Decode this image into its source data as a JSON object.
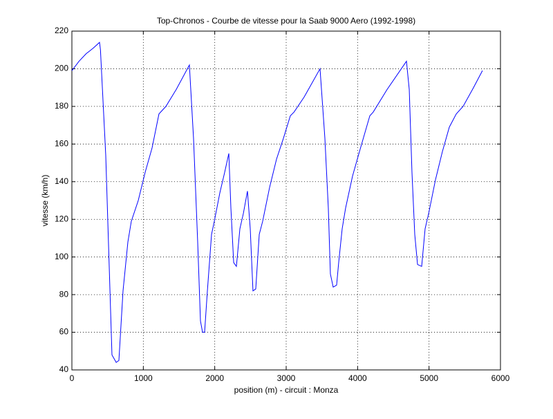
{
  "chart_data": {
    "type": "line",
    "title": "Top-Chronos - Courbe de vitesse pour la Saab 9000 Aero (1992-1998)",
    "xlabel": "position (m) - circuit : Monza",
    "ylabel": "vitesse (km/h)",
    "color": "#0000ff",
    "x": [
      0,
      100,
      200,
      300,
      387,
      400,
      474,
      561,
      620,
      658,
      716,
      784,
      832,
      929,
      1026,
      1123,
      1219,
      1316,
      1461,
      1645,
      1703,
      1761,
      1800,
      1829,
      1858,
      1897,
      1955,
      1994,
      2071,
      2139,
      2197,
      2226,
      2265,
      2303,
      2352,
      2400,
      2458,
      2497,
      2535,
      2574,
      2623,
      2671,
      2768,
      2865,
      2961,
      3058,
      3110,
      3252,
      3474,
      3542,
      3590,
      3619,
      3658,
      3706,
      3735,
      3784,
      3832,
      3929,
      4026,
      4171,
      4219,
      4413,
      4684,
      4723,
      4761,
      4800,
      4839,
      4897,
      4945,
      4994,
      5090,
      5187,
      5284,
      5381,
      5477,
      5623,
      5748
    ],
    "values": [
      199,
      204,
      208,
      211,
      214,
      210,
      154,
      48,
      44,
      45,
      82,
      108,
      119,
      130,
      145,
      158,
      176,
      180,
      189,
      202,
      163,
      108,
      66,
      60,
      60,
      82,
      112,
      119,
      134,
      145,
      155,
      126,
      97,
      95,
      115,
      123,
      135,
      115,
      82,
      83,
      112,
      119,
      137,
      152,
      163,
      175,
      177,
      185,
      200,
      163,
      126,
      91,
      84,
      85,
      97,
      115,
      126,
      143,
      156,
      175,
      177,
      189,
      204,
      189,
      145,
      112,
      96,
      95,
      115,
      123,
      141,
      156,
      169,
      176,
      180,
      190,
      199
    ],
    "xlim": [
      0,
      6000
    ],
    "ylim": [
      40,
      220
    ],
    "xticks": [
      0,
      1000,
      2000,
      3000,
      4000,
      5000,
      6000
    ],
    "yticks": [
      40,
      60,
      80,
      100,
      120,
      140,
      160,
      180,
      200,
      220
    ],
    "grid": true
  }
}
